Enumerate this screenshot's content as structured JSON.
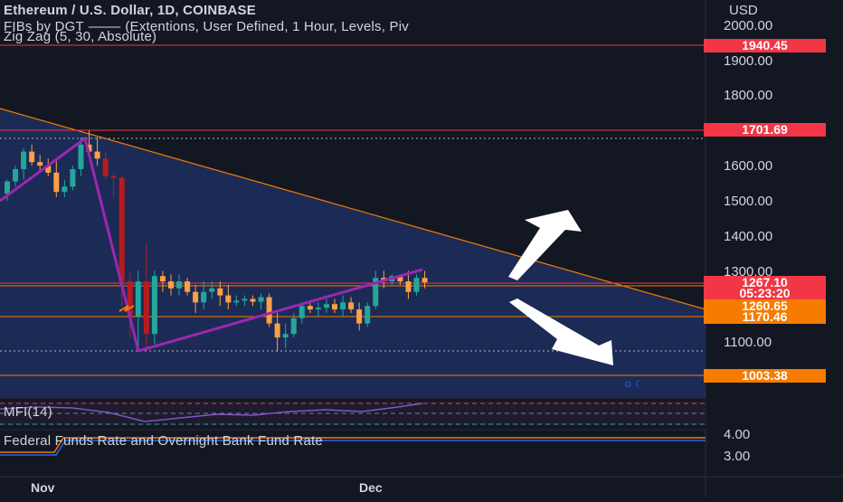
{
  "header": {
    "title_line": "Ethereum / U.S. Dollar, 1D, COINBASE",
    "fib_line": "FIBs by DGT ⸻ (Extentions, User Defined, 1 Hour, Levels, Piv",
    "zigzag_line": "Zig Zag (5, 30, Absolute)",
    "currency": "USD"
  },
  "price_axis": {
    "ticks": [
      "2000.00",
      "1900.00",
      "1800.00",
      "1600.00",
      "1500.00",
      "1400.00",
      "1300.00",
      "1100.00"
    ],
    "labels": [
      {
        "text": "1940.45",
        "color": "#f23645"
      },
      {
        "text": "1701.69",
        "color": "#f23645"
      },
      {
        "text": "1267.10",
        "color": "#f23645"
      },
      {
        "text": "05:23:20",
        "color": "#f23645"
      },
      {
        "text": "1260.65",
        "color": "#f57c00"
      },
      {
        "text": "1170.46",
        "color": "#f57c00"
      },
      {
        "text": "1003.38",
        "color": "#f57c00"
      }
    ]
  },
  "mfi_panel": {
    "label": "MFI(14)"
  },
  "fed_panel": {
    "label": "Federal Funds Rate and Overnight Bank Fund Rate",
    "ticks": [
      "4.00",
      "3.00"
    ]
  },
  "time_axis": {
    "ticks": [
      "Nov",
      "Dec"
    ]
  },
  "chart_data": {
    "type": "candlestick",
    "title": "Ethereum / U.S. Dollar, 1D, COINBASE",
    "ylim": [
      1000,
      2030
    ],
    "y_ticks": [
      2000,
      1900,
      1800,
      1600,
      1500,
      1400,
      1300,
      1100
    ],
    "x_ticks": [
      "Nov",
      "Dec"
    ],
    "horizontal_levels": [
      1940.45,
      1701.69,
      1267.1,
      1260.65,
      1170.46,
      1003.38
    ],
    "candles": [
      [
        1520,
        1560,
        1500,
        1555
      ],
      [
        1555,
        1600,
        1540,
        1590
      ],
      [
        1590,
        1650,
        1560,
        1640
      ],
      [
        1640,
        1660,
        1600,
        1610
      ],
      [
        1610,
        1630,
        1580,
        1600
      ],
      [
        1600,
        1620,
        1570,
        1580
      ],
      [
        1580,
        1620,
        1510,
        1525
      ],
      [
        1525,
        1560,
        1510,
        1540
      ],
      [
        1540,
        1600,
        1530,
        1590
      ],
      [
        1590,
        1680,
        1570,
        1660
      ],
      [
        1660,
        1700,
        1620,
        1640
      ],
      [
        1640,
        1680,
        1600,
        1620
      ],
      [
        1620,
        1640,
        1560,
        1570
      ],
      [
        1570,
        1580,
        1510,
        1565
      ],
      [
        1565,
        1570,
        1200,
        1270
      ],
      [
        1270,
        1300,
        1110,
        1170
      ],
      [
        1170,
        1300,
        1070,
        1270
      ],
      [
        1270,
        1380,
        1080,
        1120
      ],
      [
        1120,
        1300,
        1090,
        1285
      ],
      [
        1285,
        1300,
        1240,
        1270
      ],
      [
        1270,
        1290,
        1230,
        1250
      ],
      [
        1250,
        1290,
        1230,
        1270
      ],
      [
        1270,
        1280,
        1230,
        1240
      ],
      [
        1240,
        1260,
        1180,
        1210
      ],
      [
        1210,
        1270,
        1190,
        1240
      ],
      [
        1240,
        1270,
        1220,
        1250
      ],
      [
        1250,
        1270,
        1200,
        1230
      ],
      [
        1230,
        1260,
        1190,
        1210
      ],
      [
        1210,
        1230,
        1200,
        1215
      ],
      [
        1215,
        1230,
        1200,
        1220
      ],
      [
        1220,
        1230,
        1200,
        1212
      ],
      [
        1212,
        1235,
        1190,
        1225
      ],
      [
        1225,
        1235,
        1140,
        1150
      ],
      [
        1150,
        1180,
        1070,
        1110
      ],
      [
        1110,
        1150,
        1080,
        1120
      ],
      [
        1120,
        1180,
        1110,
        1165
      ],
      [
        1165,
        1210,
        1150,
        1200
      ],
      [
        1200,
        1210,
        1180,
        1190
      ],
      [
        1190,
        1210,
        1170,
        1195
      ],
      [
        1195,
        1220,
        1180,
        1205
      ],
      [
        1205,
        1220,
        1180,
        1190
      ],
      [
        1190,
        1230,
        1170,
        1210
      ],
      [
        1210,
        1225,
        1180,
        1190
      ],
      [
        1190,
        1210,
        1130,
        1150
      ],
      [
        1150,
        1210,
        1140,
        1200
      ],
      [
        1200,
        1300,
        1190,
        1280
      ],
      [
        1280,
        1300,
        1250,
        1270
      ],
      [
        1270,
        1290,
        1260,
        1285
      ],
      [
        1285,
        1290,
        1260,
        1270
      ],
      [
        1270,
        1300,
        1220,
        1240
      ],
      [
        1240,
        1290,
        1230,
        1280
      ],
      [
        1280,
        1300,
        1250,
        1267.1
      ]
    ]
  }
}
